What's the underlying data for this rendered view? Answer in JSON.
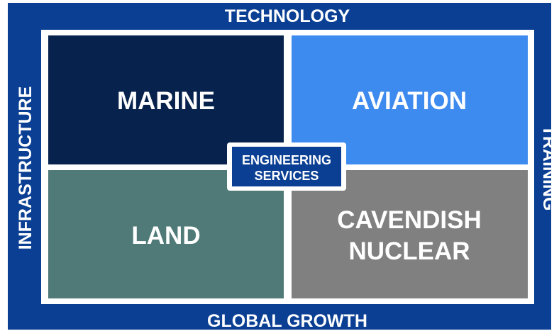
{
  "frame": {
    "top": "TECHNOLOGY",
    "bottom": "GLOBAL GROWTH",
    "left": "INFRASTRUCTURE",
    "right": "TRAINING"
  },
  "quadrants": [
    {
      "label": "MARINE"
    },
    {
      "label": "AVIATION"
    },
    {
      "label": "LAND"
    },
    {
      "label": "CAVENDISH NUCLEAR"
    }
  ],
  "center": {
    "label": "ENGINEERING SERVICES"
  }
}
